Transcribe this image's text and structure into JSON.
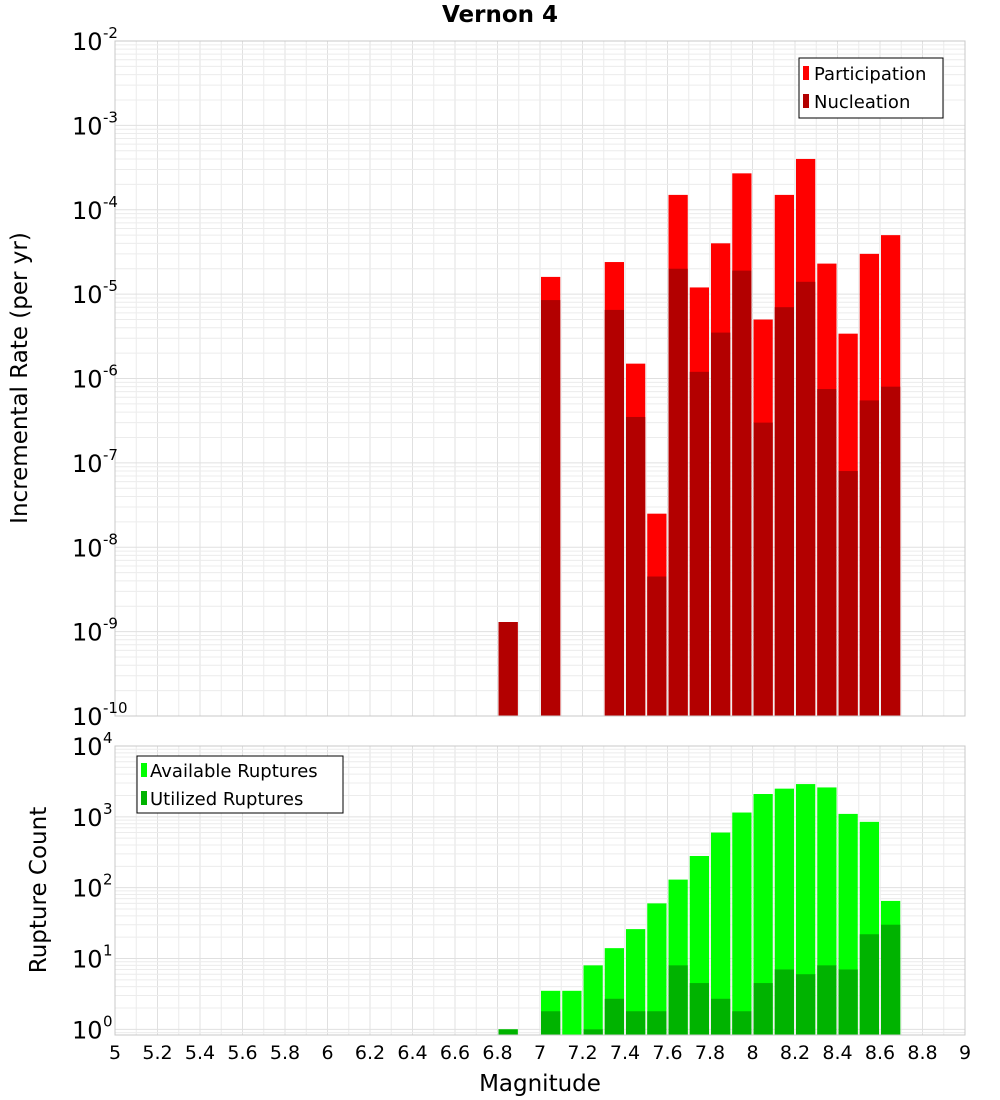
{
  "chart_data": [
    {
      "type": "bar",
      "title": "Vernon 4",
      "xlabel": "",
      "ylabel": "Incremental Rate (per yr)",
      "yscale": "log",
      "ylim_exponents": [
        -10,
        -2
      ],
      "y_tick_base": "10",
      "xlim": [
        5,
        9
      ],
      "bin_width": 0.1,
      "legend_position": "top-right",
      "x": [
        6.85,
        7.05,
        7.35,
        7.45,
        7.55,
        7.65,
        7.75,
        7.85,
        7.95,
        8.05,
        8.15,
        8.25,
        8.35,
        8.45,
        8.55,
        8.65
      ],
      "series": [
        {
          "name": "Participation",
          "color": "#ff0000",
          "values": [
            1.3e-09,
            1.6e-05,
            2.4e-05,
            1.5e-06,
            2.5e-08,
            0.00015,
            1.2e-05,
            4e-05,
            0.00027,
            5e-06,
            0.00015,
            0.0004,
            2.3e-05,
            3.4e-06,
            3e-05,
            5e-05
          ]
        },
        {
          "name": "Nucleation",
          "color": "#b30000",
          "values": [
            1.3e-09,
            8.5e-06,
            6.5e-06,
            3.5e-07,
            4.5e-09,
            2e-05,
            1.2e-06,
            3.5e-06,
            1.9e-05,
            3e-07,
            7e-06,
            1.4e-05,
            7.5e-07,
            8e-08,
            5.5e-07,
            8e-07
          ]
        }
      ]
    },
    {
      "type": "bar",
      "title": "",
      "xlabel": "Magnitude",
      "ylabel": "Rupture Count",
      "yscale": "log",
      "ylim_exponents": [
        -0.08,
        4
      ],
      "y_tick_base": "10",
      "xlim": [
        5,
        9
      ],
      "bin_width": 0.1,
      "legend_position": "top-left",
      "x_ticks": [
        "5",
        "5.2",
        "5.4",
        "5.6",
        "5.8",
        "6",
        "6.2",
        "6.4",
        "6.6",
        "6.8",
        "7",
        "7.2",
        "7.4",
        "7.6",
        "7.8",
        "8",
        "8.2",
        "8.4",
        "8.6",
        "8.8",
        "9"
      ],
      "x": [
        6.85,
        7.05,
        7.15,
        7.25,
        7.35,
        7.45,
        7.55,
        7.65,
        7.75,
        7.85,
        7.95,
        8.05,
        8.15,
        8.25,
        8.35,
        8.45,
        8.55,
        8.65
      ],
      "series": [
        {
          "name": "Available Ruptures",
          "color": "#00ff00",
          "values": [
            1,
            3.5,
            3.5,
            8,
            14,
            26,
            60,
            130,
            280,
            600,
            1150,
            2100,
            2500,
            2900,
            2600,
            1100,
            850,
            65
          ]
        },
        {
          "name": "Utilized Ruptures",
          "color": "#00b300",
          "values": [
            1,
            1.8,
            0,
            1,
            2.7,
            1.8,
            1.8,
            8,
            4.5,
            2.7,
            1.8,
            4.5,
            7,
            6,
            8,
            7,
            22,
            30
          ]
        }
      ]
    }
  ]
}
